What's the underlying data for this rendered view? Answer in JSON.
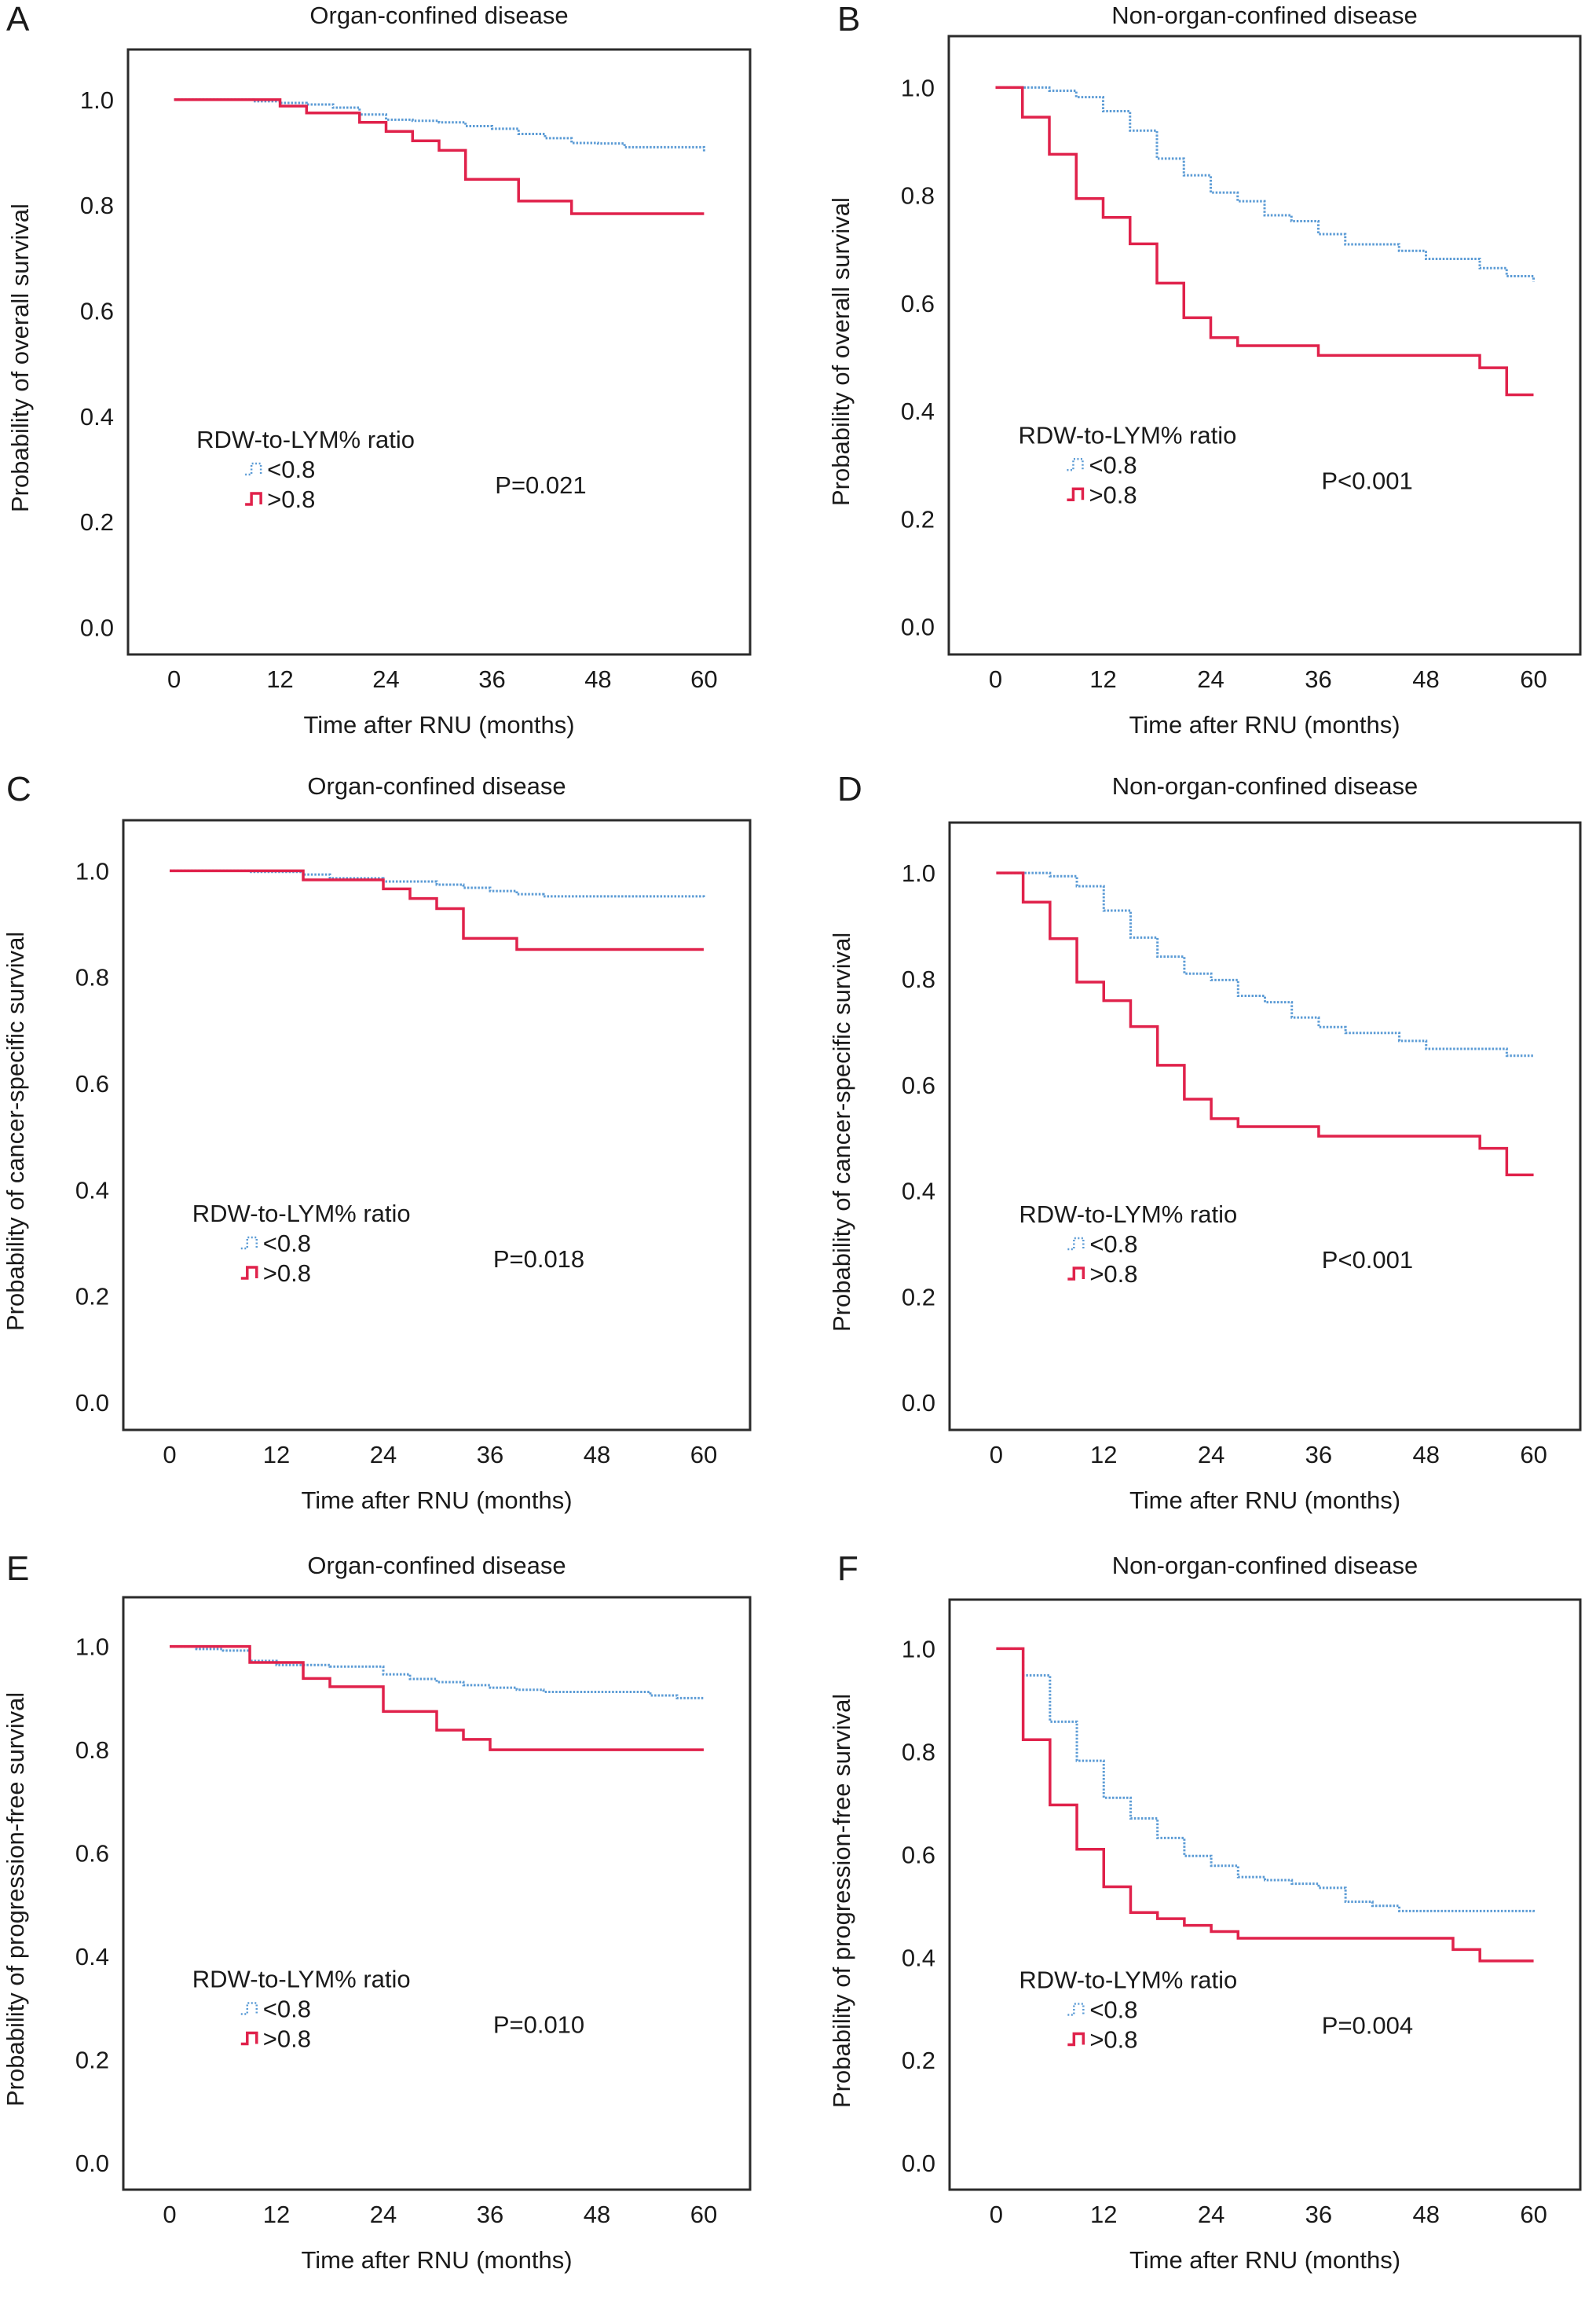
{
  "figure": {
    "legend_title": "RDW-to-LYM% ratio",
    "groups": [
      {
        "key": "low",
        "label": "<0.8",
        "color": "#5b9bd5",
        "style": "dotted"
      },
      {
        "key": "high",
        "label": ">0.8",
        "color": "#e0224b",
        "style": "solid"
      }
    ],
    "xlabel": "Time after RNU (months)"
  },
  "chart_data": [
    {
      "panel": "A",
      "type": "line",
      "subtype": "kaplan-meier-step",
      "title": "Organ-confined disease",
      "xlabel": "Time after RNU (months)",
      "ylabel": "Probability of overall survival",
      "xlim": [
        0,
        60
      ],
      "ylim": [
        0,
        1
      ],
      "xticks": [
        0,
        12,
        24,
        36,
        48,
        60
      ],
      "yticks": [
        0.0,
        0.2,
        0.4,
        0.6,
        0.8,
        1.0
      ],
      "ytick_labels": [
        "0.0",
        "0.2",
        "0.4",
        "0.6",
        "0.8",
        "1.0"
      ],
      "grid": false,
      "legend_placement": "bottom-left",
      "pvalue": "P=0.021",
      "series": [
        {
          "name": "<0.8",
          "x": [
            0,
            9,
            12,
            15,
            18,
            21,
            24,
            27,
            30,
            33,
            36,
            39,
            42,
            45,
            48,
            51,
            60
          ],
          "y": [
            1.0,
            0.997,
            0.994,
            0.991,
            0.985,
            0.972,
            0.962,
            0.96,
            0.957,
            0.95,
            0.945,
            0.935,
            0.927,
            0.918,
            0.917,
            0.91,
            0.902
          ]
        },
        {
          "name": ">0.8",
          "x": [
            0,
            12,
            15,
            21,
            24,
            27,
            30,
            33,
            39,
            45,
            60
          ],
          "y": [
            1.0,
            0.988,
            0.975,
            0.957,
            0.94,
            0.922,
            0.904,
            0.849,
            0.808,
            0.784,
            0.784
          ]
        }
      ]
    },
    {
      "panel": "B",
      "type": "line",
      "subtype": "kaplan-meier-step",
      "title": "Non-organ-confined disease",
      "xlabel": "Time after RNU (months)",
      "ylabel": "Probability of overall survival",
      "xlim": [
        0,
        60
      ],
      "ylim": [
        0,
        1
      ],
      "xticks": [
        0,
        12,
        24,
        36,
        48,
        60
      ],
      "yticks": [
        0.0,
        0.2,
        0.4,
        0.6,
        0.8,
        1.0
      ],
      "ytick_labels": [
        "0.0",
        "0.2",
        "0.4",
        "0.6",
        "0.8",
        "1.0"
      ],
      "grid": false,
      "legend_placement": "bottom-left",
      "pvalue": "P<0.001",
      "series": [
        {
          "name": "<0.8",
          "x": [
            0,
            6,
            9,
            12,
            15,
            18,
            21,
            24,
            27,
            30,
            33,
            36,
            39,
            45,
            48,
            54,
            57,
            60
          ],
          "y": [
            1.0,
            0.994,
            0.982,
            0.956,
            0.92,
            0.868,
            0.837,
            0.805,
            0.789,
            0.763,
            0.752,
            0.728,
            0.709,
            0.697,
            0.682,
            0.665,
            0.65,
            0.64
          ]
        },
        {
          "name": ">0.8",
          "x": [
            0,
            3,
            6,
            9,
            12,
            15,
            18,
            21,
            24,
            27,
            36,
            54,
            57,
            60
          ],
          "y": [
            1.0,
            0.945,
            0.876,
            0.794,
            0.759,
            0.71,
            0.637,
            0.573,
            0.536,
            0.521,
            0.503,
            0.48,
            0.43,
            0.43
          ]
        }
      ]
    },
    {
      "panel": "C",
      "type": "line",
      "subtype": "kaplan-meier-step",
      "title": "Organ-confined disease",
      "xlabel": "Time after RNU (months)",
      "ylabel": "Probability of cancer-specific survival",
      "xlim": [
        0,
        60
      ],
      "ylim": [
        0,
        1
      ],
      "xticks": [
        0,
        12,
        24,
        36,
        48,
        60
      ],
      "yticks": [
        0.0,
        0.2,
        0.4,
        0.6,
        0.8,
        1.0
      ],
      "ytick_labels": [
        "0.0",
        "0.2",
        "0.4",
        "0.6",
        "0.8",
        "1.0"
      ],
      "grid": false,
      "legend_placement": "bottom-left",
      "pvalue": "P=0.018",
      "series": [
        {
          "name": "<0.8",
          "x": [
            0,
            9,
            15,
            18,
            24,
            30,
            33,
            36,
            39,
            42,
            60
          ],
          "y": [
            1.0,
            0.998,
            0.993,
            0.986,
            0.98,
            0.974,
            0.968,
            0.962,
            0.956,
            0.952,
            0.948
          ]
        },
        {
          "name": ">0.8",
          "x": [
            0,
            15,
            24,
            27,
            30,
            33,
            39,
            60
          ],
          "y": [
            1.0,
            0.983,
            0.966,
            0.948,
            0.929,
            0.873,
            0.852,
            0.852
          ]
        }
      ]
    },
    {
      "panel": "D",
      "type": "line",
      "subtype": "kaplan-meier-step",
      "title": "Non-organ-confined disease",
      "xlabel": "Time after RNU (months)",
      "ylabel": "Probability of cancer-specific survival",
      "xlim": [
        0,
        60
      ],
      "ylim": [
        0,
        1
      ],
      "xticks": [
        0,
        12,
        24,
        36,
        48,
        60
      ],
      "yticks": [
        0.0,
        0.2,
        0.4,
        0.6,
        0.8,
        1.0
      ],
      "ytick_labels": [
        "0.0",
        "0.2",
        "0.4",
        "0.6",
        "0.8",
        "1.0"
      ],
      "grid": false,
      "legend_placement": "bottom-left",
      "pvalue": "P<0.001",
      "series": [
        {
          "name": "<0.8",
          "x": [
            0,
            6,
            9,
            12,
            15,
            18,
            21,
            24,
            27,
            30,
            33,
            36,
            39,
            45,
            48,
            57,
            60
          ],
          "y": [
            1.0,
            0.994,
            0.975,
            0.929,
            0.878,
            0.842,
            0.81,
            0.798,
            0.768,
            0.756,
            0.727,
            0.709,
            0.698,
            0.683,
            0.668,
            0.655,
            0.655
          ]
        },
        {
          "name": ">0.8",
          "x": [
            0,
            3,
            6,
            9,
            12,
            15,
            18,
            21,
            24,
            27,
            36,
            54,
            57,
            60
          ],
          "y": [
            1.0,
            0.945,
            0.876,
            0.794,
            0.759,
            0.71,
            0.637,
            0.573,
            0.536,
            0.521,
            0.503,
            0.48,
            0.43,
            0.43
          ]
        }
      ]
    },
    {
      "panel": "E",
      "type": "line",
      "subtype": "kaplan-meier-step",
      "title": "Organ-confined disease",
      "xlabel": "Time after RNU (months)",
      "ylabel": "Probability of progression-free survival",
      "xlim": [
        0,
        60
      ],
      "ylim": [
        0,
        1
      ],
      "xticks": [
        0,
        12,
        24,
        36,
        48,
        60
      ],
      "yticks": [
        0.0,
        0.2,
        0.4,
        0.6,
        0.8,
        1.0
      ],
      "ytick_labels": [
        "0.0",
        "0.2",
        "0.4",
        "0.6",
        "0.8",
        "1.0"
      ],
      "grid": false,
      "legend_placement": "bottom-left",
      "pvalue": "P=0.010",
      "series": [
        {
          "name": "<0.8",
          "x": [
            0,
            3,
            6,
            9,
            12,
            18,
            24,
            27,
            30,
            33,
            36,
            39,
            42,
            54,
            57,
            60
          ],
          "y": [
            1.0,
            0.995,
            0.992,
            0.972,
            0.964,
            0.961,
            0.946,
            0.937,
            0.931,
            0.925,
            0.92,
            0.916,
            0.912,
            0.905,
            0.9,
            0.9
          ]
        },
        {
          "name": ">0.8",
          "x": [
            0,
            9,
            15,
            18,
            24,
            30,
            33,
            36,
            60
          ],
          "y": [
            1.0,
            0.969,
            0.938,
            0.922,
            0.874,
            0.838,
            0.82,
            0.8,
            0.8
          ]
        }
      ]
    },
    {
      "panel": "F",
      "type": "line",
      "subtype": "kaplan-meier-step",
      "title": "Non-organ-confined disease",
      "xlabel": "Time after RNU (months)",
      "ylabel": "Probability of progression-free survival",
      "xlim": [
        0,
        60
      ],
      "ylim": [
        0,
        1
      ],
      "xticks": [
        0,
        12,
        24,
        36,
        48,
        60
      ],
      "yticks": [
        0.0,
        0.2,
        0.4,
        0.6,
        0.8,
        1.0
      ],
      "ytick_labels": [
        "0.0",
        "0.2",
        "0.4",
        "0.6",
        "0.8",
        "1.0"
      ],
      "grid": false,
      "legend_placement": "bottom-left",
      "pvalue": "P=0.004",
      "series": [
        {
          "name": "<0.8",
          "x": [
            0,
            3,
            6,
            9,
            12,
            15,
            18,
            21,
            24,
            27,
            30,
            33,
            36,
            39,
            42,
            45,
            60
          ],
          "y": [
            1.0,
            0.948,
            0.858,
            0.782,
            0.71,
            0.67,
            0.632,
            0.597,
            0.578,
            0.556,
            0.55,
            0.543,
            0.535,
            0.508,
            0.5,
            0.49,
            0.485
          ]
        },
        {
          "name": ">0.8",
          "x": [
            0,
            3,
            6,
            9,
            12,
            15,
            18,
            21,
            24,
            27,
            51,
            54,
            60
          ],
          "y": [
            1.0,
            0.823,
            0.696,
            0.61,
            0.537,
            0.487,
            0.475,
            0.462,
            0.45,
            0.437,
            0.415,
            0.393,
            0.393
          ]
        }
      ]
    }
  ]
}
